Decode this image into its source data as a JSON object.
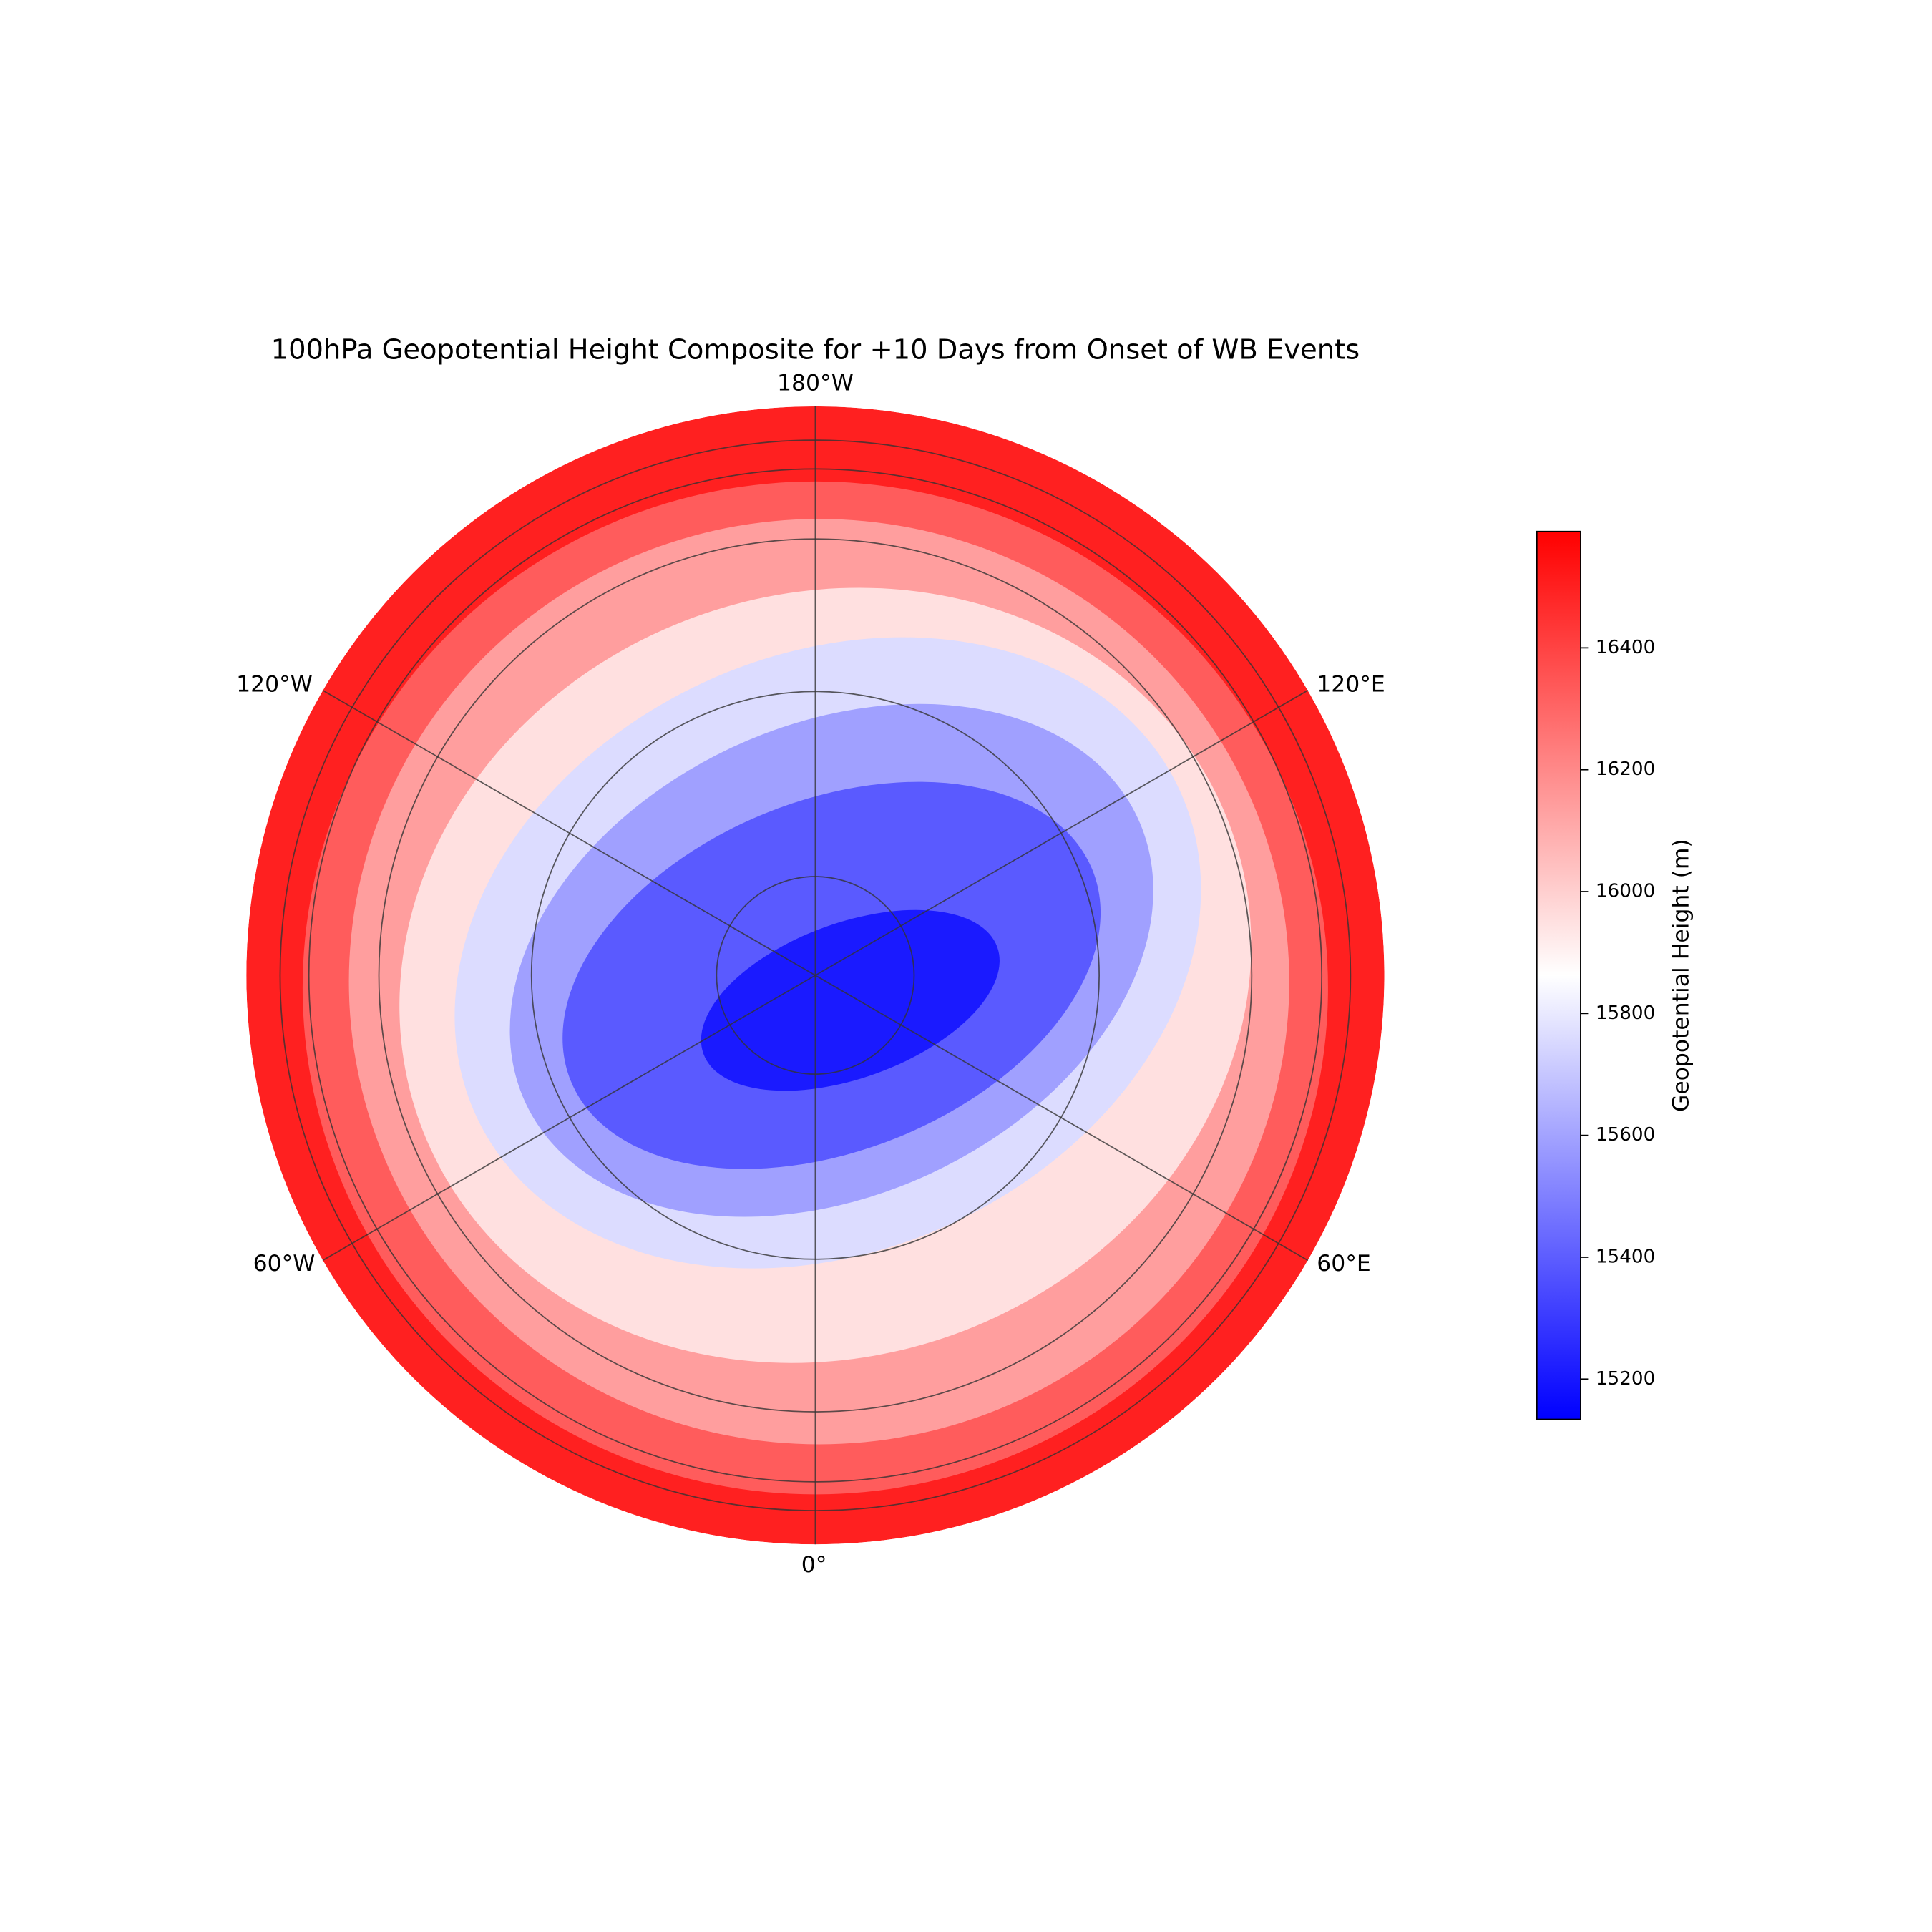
{
  "title": "100hPa Geopotential Height Composite for +10 Days from Onset of WB Events",
  "map": {
    "longitude_labels": [
      "180°W",
      "120°E",
      "60°E",
      "0°",
      "60°W",
      "120°W"
    ]
  },
  "colorbar": {
    "label": "Geopotential Height (m)",
    "ylim": [
      15134,
      16591
    ],
    "yticks": [
      15200,
      15400,
      15600,
      15800,
      16000,
      16200,
      16400
    ],
    "colors": [
      "#0000ff",
      "#ffffff",
      "#ff0000"
    ]
  }
}
